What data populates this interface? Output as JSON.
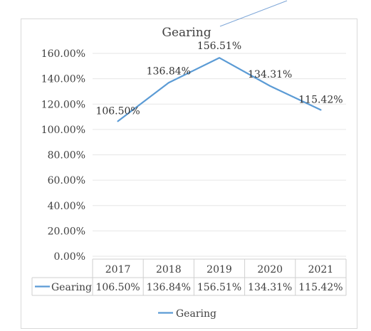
{
  "chart_data": {
    "type": "line",
    "title": "Gearing",
    "categories": [
      "2017",
      "2018",
      "2019",
      "2020",
      "2021"
    ],
    "series": [
      {
        "name": "Gearing",
        "values": [
          106.5,
          136.84,
          156.51,
          134.31,
          115.42
        ],
        "data_labels": [
          "106.50%",
          "136.84%",
          "156.51%",
          "134.31%",
          "115.42%"
        ]
      }
    ],
    "ylim": [
      0,
      160
    ],
    "yticks": [
      "0.00%",
      "20.00%",
      "40.00%",
      "60.00%",
      "80.00%",
      "100.00%",
      "120.00%",
      "140.00%",
      "160.00%"
    ],
    "grid": true,
    "legend": "bottom",
    "data_table": true,
    "colors": {
      "series": "#5b9bd5"
    }
  }
}
